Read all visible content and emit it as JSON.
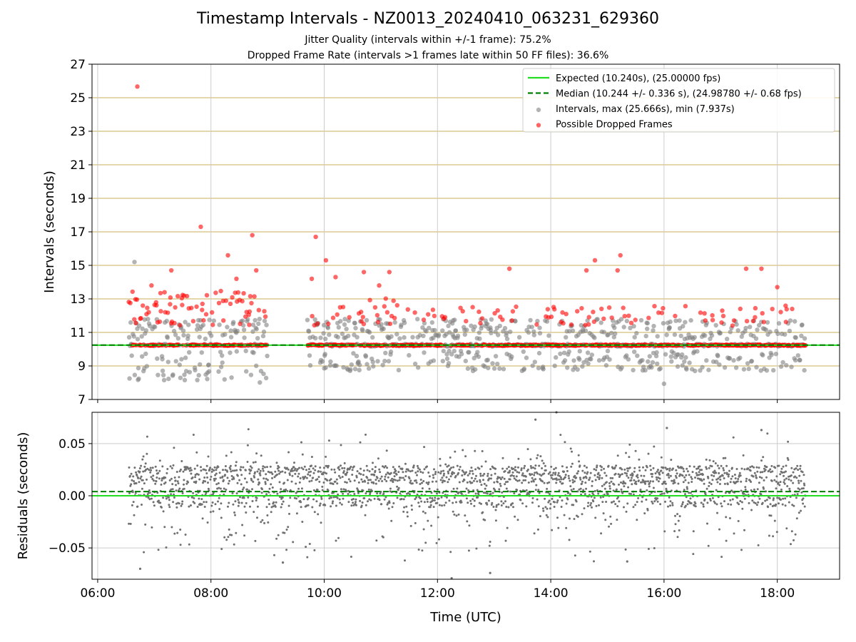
{
  "page": {
    "title": "Timestamp Intervals - NZ0013_20240410_063231_629360",
    "subtitle_1": "Jitter Quality (intervals within +/-1 frame): 75.2%",
    "subtitle_2": "Dropped Frame Rate (intervals >1 frames late within 50 FF files): 36.6%"
  },
  "chart_data": [
    {
      "type": "scatter",
      "panel": "top",
      "ylabel": "Intervals (seconds)",
      "xlabel": "",
      "ylim": [
        7,
        27
      ],
      "yticks": [
        7,
        9,
        11,
        13,
        15,
        17,
        19,
        21,
        23,
        25,
        27
      ],
      "xlim_hours": [
        5.9,
        19.1
      ],
      "grid": {
        "horizontal_color": "#d4bf7a",
        "vertical_color": "#cccccc"
      },
      "legend_position": "top-right",
      "expected_line": {
        "value": 10.24,
        "label": "Expected (10.240s), (25.00000 fps)",
        "color": "#22dd22"
      },
      "median_line": {
        "value": 10.244,
        "label": "Median (10.244 +/- 0.336 s), (24.98780 +/- 0.68 fps)",
        "color": "#008000"
      },
      "series": [
        {
          "name": "Intervals, max (25.666s), min (7.937s)",
          "color": "#808080"
        },
        {
          "name": "Possible Dropped Frames",
          "color": "#ff0000"
        }
      ],
      "session_gaps_hours": [
        [
          9.0,
          9.7
        ]
      ],
      "outlier_points": [
        {
          "t": 6.7,
          "v": 25.666,
          "dropped": true
        },
        {
          "t": 7.82,
          "v": 17.3,
          "dropped": true
        },
        {
          "t": 8.73,
          "v": 16.8,
          "dropped": true
        },
        {
          "t": 9.85,
          "v": 16.7,
          "dropped": true
        },
        {
          "t": 8.3,
          "v": 15.6,
          "dropped": true
        },
        {
          "t": 10.03,
          "v": 15.3,
          "dropped": true
        },
        {
          "t": 6.65,
          "v": 15.2,
          "dropped": false
        },
        {
          "t": 15.23,
          "v": 15.6,
          "dropped": true
        },
        {
          "t": 14.78,
          "v": 15.3,
          "dropped": true
        },
        {
          "t": 13.27,
          "v": 14.8,
          "dropped": true
        },
        {
          "t": 14.63,
          "v": 14.7,
          "dropped": true
        },
        {
          "t": 15.18,
          "v": 14.7,
          "dropped": true
        },
        {
          "t": 17.45,
          "v": 14.8,
          "dropped": true
        },
        {
          "t": 17.72,
          "v": 14.8,
          "dropped": true
        },
        {
          "t": 18.0,
          "v": 13.7,
          "dropped": true
        },
        {
          "t": 7.3,
          "v": 14.7,
          "dropped": true
        },
        {
          "t": 8.8,
          "v": 14.7,
          "dropped": true
        },
        {
          "t": 9.78,
          "v": 14.2,
          "dropped": true
        },
        {
          "t": 10.2,
          "v": 14.3,
          "dropped": true
        },
        {
          "t": 8.45,
          "v": 14.2,
          "dropped": true
        },
        {
          "t": 10.7,
          "v": 14.6,
          "dropped": true
        },
        {
          "t": 11.15,
          "v": 14.6,
          "dropped": true
        },
        {
          "t": 6.95,
          "v": 13.8,
          "dropped": true
        },
        {
          "t": 10.97,
          "v": 13.8,
          "dropped": true
        },
        {
          "t": 16.0,
          "v": 7.937,
          "dropped": false
        }
      ]
    },
    {
      "type": "scatter",
      "panel": "bottom",
      "xlabel": "Time (UTC)",
      "ylabel": "Residuals (seconds)",
      "ylim": [
        -0.08,
        0.08
      ],
      "yticks": [
        -0.05,
        0.0,
        0.05
      ],
      "ytick_labels": [
        "−0.05",
        "0.00",
        "0.05"
      ],
      "xticks_hours": [
        6,
        8,
        10,
        12,
        14,
        16,
        18
      ],
      "xtick_labels": [
        "06:00",
        "08:00",
        "10:00",
        "12:00",
        "14:00",
        "16:00",
        "18:00"
      ],
      "expected_line": {
        "value": 0.0,
        "color": "#22dd22"
      },
      "median_line": {
        "value": 0.004,
        "color": "#008000"
      },
      "series": [
        {
          "name": "",
          "color": "#707070"
        }
      ],
      "outlier_points": [
        {
          "t": 6.75,
          "r": -0.07
        },
        {
          "t": 12.93,
          "r": -0.074
        },
        {
          "t": 13.73,
          "r": 0.073
        },
        {
          "t": 14.1,
          "r": 0.08
        },
        {
          "t": 9.27,
          "r": -0.064
        },
        {
          "t": 16.05,
          "r": 0.065
        },
        {
          "t": 17.72,
          "r": 0.063
        },
        {
          "t": 12.25,
          "r": -0.079
        },
        {
          "t": 15.35,
          "r": -0.063
        }
      ]
    }
  ]
}
